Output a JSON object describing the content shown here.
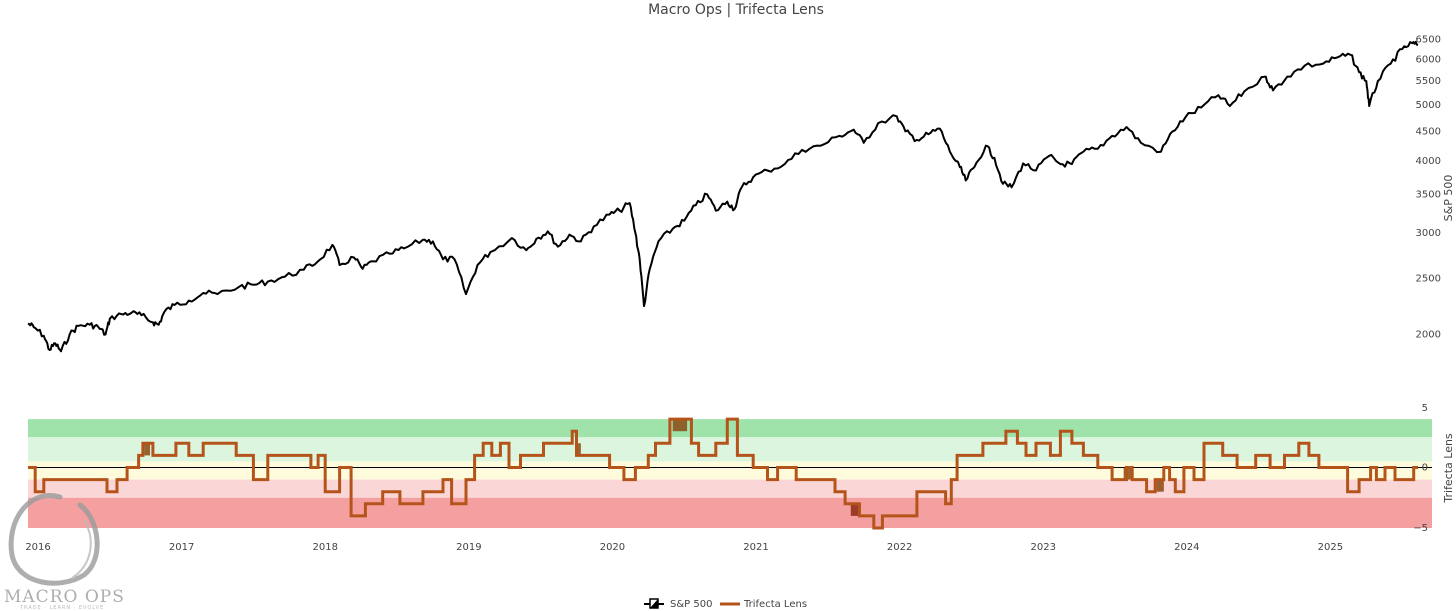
{
  "chart_data": [
    {
      "type": "line",
      "title": "Macro Ops | Trifecta Lens",
      "ylabel": "S&P 500",
      "yscale": "log",
      "ylim": [
        1880,
        6560
      ],
      "yticks": [
        2000,
        2500,
        3000,
        3500,
        4000,
        4500,
        5000,
        5500,
        6000,
        6500
      ],
      "xlim": [
        2015.93,
        2025.61
      ],
      "xticks": [
        2016,
        2017,
        2018,
        2019,
        2020,
        2021,
        2022,
        2023,
        2024,
        2025
      ],
      "series": [
        {
          "name": "S&P 500",
          "color": "#000000",
          "points": [
            [
              2015.93,
              2090
            ],
            [
              2015.97,
              2060
            ],
            [
              2016.04,
              1990
            ],
            [
              2016.08,
              1880
            ],
            [
              2016.12,
              1930
            ],
            [
              2016.16,
              1870
            ],
            [
              2016.22,
              2000
            ],
            [
              2016.28,
              2070
            ],
            [
              2016.36,
              2080
            ],
            [
              2016.42,
              2060
            ],
            [
              2016.47,
              2000
            ],
            [
              2016.5,
              2130
            ],
            [
              2016.58,
              2170
            ],
            [
              2016.65,
              2180
            ],
            [
              2016.72,
              2160
            ],
            [
              2016.8,
              2100
            ],
            [
              2016.84,
              2080
            ],
            [
              2016.88,
              2190
            ],
            [
              2016.95,
              2250
            ],
            [
              2017.05,
              2290
            ],
            [
              2017.15,
              2360
            ],
            [
              2017.25,
              2350
            ],
            [
              2017.4,
              2420
            ],
            [
              2017.5,
              2440
            ],
            [
              2017.6,
              2470
            ],
            [
              2017.72,
              2520
            ],
            [
              2017.85,
              2590
            ],
            [
              2017.95,
              2680
            ],
            [
              2018.05,
              2860
            ],
            [
              2018.1,
              2640
            ],
            [
              2018.2,
              2720
            ],
            [
              2018.26,
              2600
            ],
            [
              2018.33,
              2680
            ],
            [
              2018.45,
              2760
            ],
            [
              2018.55,
              2820
            ],
            [
              2018.68,
              2920
            ],
            [
              2018.75,
              2900
            ],
            [
              2018.82,
              2700
            ],
            [
              2018.9,
              2700
            ],
            [
              2018.98,
              2350
            ],
            [
              2019.06,
              2640
            ],
            [
              2019.15,
              2780
            ],
            [
              2019.3,
              2940
            ],
            [
              2019.4,
              2800
            ],
            [
              2019.47,
              2930
            ],
            [
              2019.55,
              3020
            ],
            [
              2019.62,
              2840
            ],
            [
              2019.7,
              2980
            ],
            [
              2019.78,
              2900
            ],
            [
              2019.87,
              3080
            ],
            [
              2019.98,
              3230
            ],
            [
              2020.05,
              3280
            ],
            [
              2020.12,
              3380
            ],
            [
              2020.16,
              3000
            ],
            [
              2020.19,
              2700
            ],
            [
              2020.22,
              2240
            ],
            [
              2020.26,
              2600
            ],
            [
              2020.32,
              2900
            ],
            [
              2020.42,
              3050
            ],
            [
              2020.5,
              3150
            ],
            [
              2020.58,
              3350
            ],
            [
              2020.66,
              3500
            ],
            [
              2020.72,
              3280
            ],
            [
              2020.8,
              3400
            ],
            [
              2020.85,
              3300
            ],
            [
              2020.9,
              3600
            ],
            [
              2020.98,
              3750
            ],
            [
              2021.08,
              3850
            ],
            [
              2021.2,
              3950
            ],
            [
              2021.32,
              4180
            ],
            [
              2021.45,
              4250
            ],
            [
              2021.58,
              4420
            ],
            [
              2021.68,
              4530
            ],
            [
              2021.75,
              4300
            ],
            [
              2021.85,
              4650
            ],
            [
              2021.98,
              4780
            ],
            [
              2022.04,
              4500
            ],
            [
              2022.12,
              4350
            ],
            [
              2022.2,
              4450
            ],
            [
              2022.28,
              4550
            ],
            [
              2022.35,
              4150
            ],
            [
              2022.42,
              3900
            ],
            [
              2022.46,
              3700
            ],
            [
              2022.52,
              3900
            ],
            [
              2022.6,
              4250
            ],
            [
              2022.66,
              4050
            ],
            [
              2022.72,
              3650
            ],
            [
              2022.78,
              3600
            ],
            [
              2022.86,
              3960
            ],
            [
              2022.95,
              3850
            ],
            [
              2023.04,
              4080
            ],
            [
              2023.12,
              3950
            ],
            [
              2023.2,
              3950
            ],
            [
              2023.28,
              4150
            ],
            [
              2023.38,
              4200
            ],
            [
              2023.48,
              4420
            ],
            [
              2023.58,
              4580
            ],
            [
              2023.68,
              4300
            ],
            [
              2023.82,
              4150
            ],
            [
              2023.9,
              4500
            ],
            [
              2023.99,
              4760
            ],
            [
              2024.1,
              4950
            ],
            [
              2024.22,
              5200
            ],
            [
              2024.3,
              4980
            ],
            [
              2024.4,
              5280
            ],
            [
              2024.55,
              5600
            ],
            [
              2024.6,
              5300
            ],
            [
              2024.7,
              5600
            ],
            [
              2024.82,
              5850
            ],
            [
              2024.95,
              5900
            ],
            [
              2025.05,
              6050
            ],
            [
              2025.14,
              6110
            ],
            [
              2025.2,
              5700
            ],
            [
              2025.25,
              5500
            ],
            [
              2025.27,
              4980
            ],
            [
              2025.33,
              5500
            ],
            [
              2025.42,
              5900
            ],
            [
              2025.5,
              6250
            ],
            [
              2025.57,
              6400
            ],
            [
              2025.61,
              6350
            ]
          ]
        }
      ]
    },
    {
      "type": "line",
      "ylabel": "Trifecta Lens",
      "ylim": [
        -5,
        5
      ],
      "yticks": [
        -5,
        0,
        5
      ],
      "xlim": [
        2015.93,
        2025.61
      ],
      "xticks": [
        2016,
        2017,
        2018,
        2019,
        2020,
        2021,
        2022,
        2023,
        2024,
        2025
      ],
      "bands": [
        {
          "from": 2.5,
          "to": 4,
          "color": "#9fe3ab"
        },
        {
          "from": 0.5,
          "to": 2.5,
          "color": "#dbf5de"
        },
        {
          "from": -1,
          "to": 0.5,
          "color": "#fdfbdc"
        },
        {
          "from": -2.5,
          "to": -1,
          "color": "#fad6d7"
        },
        {
          "from": -5,
          "to": -2.5,
          "color": "#f4a0a1"
        }
      ],
      "series": [
        {
          "name": "Trifecta Lens",
          "color": "#b5541a",
          "steps": [
            [
              2015.93,
              0
            ],
            [
              2015.98,
              -2
            ],
            [
              2016.04,
              -1
            ],
            [
              2016.08,
              -1
            ],
            [
              2016.12,
              -1
            ],
            [
              2016.4,
              -1
            ],
            [
              2016.45,
              -1
            ],
            [
              2016.48,
              -2
            ],
            [
              2016.55,
              -1
            ],
            [
              2016.62,
              0
            ],
            [
              2016.7,
              1
            ],
            [
              2016.73,
              2
            ],
            [
              2016.8,
              1
            ],
            [
              2016.96,
              2
            ],
            [
              2017.05,
              1
            ],
            [
              2017.15,
              2
            ],
            [
              2017.38,
              1
            ],
            [
              2017.5,
              -1
            ],
            [
              2017.6,
              1
            ],
            [
              2017.9,
              0
            ],
            [
              2017.95,
              1
            ],
            [
              2018.0,
              -2
            ],
            [
              2018.1,
              0
            ],
            [
              2018.18,
              -4
            ],
            [
              2018.28,
              -3
            ],
            [
              2018.4,
              -2
            ],
            [
              2018.52,
              -3
            ],
            [
              2018.68,
              -2
            ],
            [
              2018.82,
              -1
            ],
            [
              2018.88,
              -3
            ],
            [
              2018.98,
              -1
            ],
            [
              2019.04,
              1
            ],
            [
              2019.1,
              2
            ],
            [
              2019.16,
              1
            ],
            [
              2019.22,
              2
            ],
            [
              2019.28,
              0
            ],
            [
              2019.36,
              1
            ],
            [
              2019.45,
              1
            ],
            [
              2019.52,
              2
            ],
            [
              2019.62,
              2
            ],
            [
              2019.72,
              3
            ],
            [
              2019.75,
              1
            ],
            [
              2019.82,
              1
            ],
            [
              2019.98,
              0
            ],
            [
              2020.08,
              -1
            ],
            [
              2020.16,
              0
            ],
            [
              2020.25,
              1
            ],
            [
              2020.3,
              2
            ],
            [
              2020.4,
              4
            ],
            [
              2020.55,
              2
            ],
            [
              2020.6,
              1
            ],
            [
              2020.72,
              2
            ],
            [
              2020.8,
              4
            ],
            [
              2020.87,
              1
            ],
            [
              2020.98,
              0
            ],
            [
              2021.08,
              -1
            ],
            [
              2021.15,
              0
            ],
            [
              2021.28,
              -1
            ],
            [
              2021.42,
              -1
            ],
            [
              2021.5,
              -1
            ],
            [
              2021.55,
              -2
            ],
            [
              2021.62,
              -3
            ],
            [
              2021.72,
              -4
            ],
            [
              2021.82,
              -5
            ],
            [
              2021.88,
              -4
            ],
            [
              2021.98,
              -4
            ],
            [
              2022.12,
              -2
            ],
            [
              2022.25,
              -2
            ],
            [
              2022.32,
              -3
            ],
            [
              2022.36,
              -1
            ],
            [
              2022.4,
              1
            ],
            [
              2022.48,
              1
            ],
            [
              2022.58,
              2
            ],
            [
              2022.66,
              2
            ],
            [
              2022.74,
              3
            ],
            [
              2022.82,
              2
            ],
            [
              2022.88,
              1
            ],
            [
              2022.95,
              2
            ],
            [
              2023.05,
              1
            ],
            [
              2023.12,
              3
            ],
            [
              2023.2,
              2
            ],
            [
              2023.28,
              1
            ],
            [
              2023.38,
              0
            ],
            [
              2023.48,
              -1
            ],
            [
              2023.58,
              0
            ],
            [
              2023.62,
              -1
            ],
            [
              2023.72,
              -2
            ],
            [
              2023.78,
              -1
            ],
            [
              2023.84,
              0
            ],
            [
              2023.88,
              -1
            ],
            [
              2023.92,
              -2
            ],
            [
              2023.98,
              0
            ],
            [
              2024.05,
              -1
            ],
            [
              2024.12,
              2
            ],
            [
              2024.25,
              1
            ],
            [
              2024.35,
              0
            ],
            [
              2024.48,
              1
            ],
            [
              2024.58,
              0
            ],
            [
              2024.68,
              1
            ],
            [
              2024.78,
              2
            ],
            [
              2024.85,
              1
            ],
            [
              2024.92,
              0
            ],
            [
              2025.05,
              0
            ],
            [
              2025.12,
              -2
            ],
            [
              2025.2,
              -1
            ],
            [
              2025.28,
              0
            ],
            [
              2025.32,
              -1
            ],
            [
              2025.38,
              0
            ],
            [
              2025.45,
              -1
            ],
            [
              2025.58,
              0
            ],
            [
              2025.61,
              0
            ]
          ]
        }
      ],
      "highlight_spans": [
        {
          "from": 2020.42,
          "to": 2020.52,
          "value": 4,
          "color": "#8a4a12"
        },
        {
          "from": 2019.74,
          "to": 2019.78,
          "value": 2,
          "color": "#8a4a12"
        },
        {
          "from": 2016.74,
          "to": 2016.78,
          "value": 2,
          "color": "#8a4a12"
        },
        {
          "from": 2021.66,
          "to": 2021.73,
          "value": -4,
          "color": "#8a2a12"
        },
        {
          "from": 2023.56,
          "to": 2023.62,
          "value": -1,
          "color": "#8a4a12"
        },
        {
          "from": 2023.79,
          "to": 2023.84,
          "value": -2,
          "color": "#8a4a12"
        }
      ]
    }
  ],
  "legend": {
    "items": [
      {
        "label": "S&P 500",
        "color": "#000000",
        "icon": "candlestick-legend-icon"
      },
      {
        "label": "Trifecta Lens",
        "color": "#b5541a",
        "icon": "line-legend-icon"
      }
    ]
  },
  "watermark": {
    "text": "MACRO OPS",
    "subtext": "TRADE · LEARN · EVOLVE"
  }
}
